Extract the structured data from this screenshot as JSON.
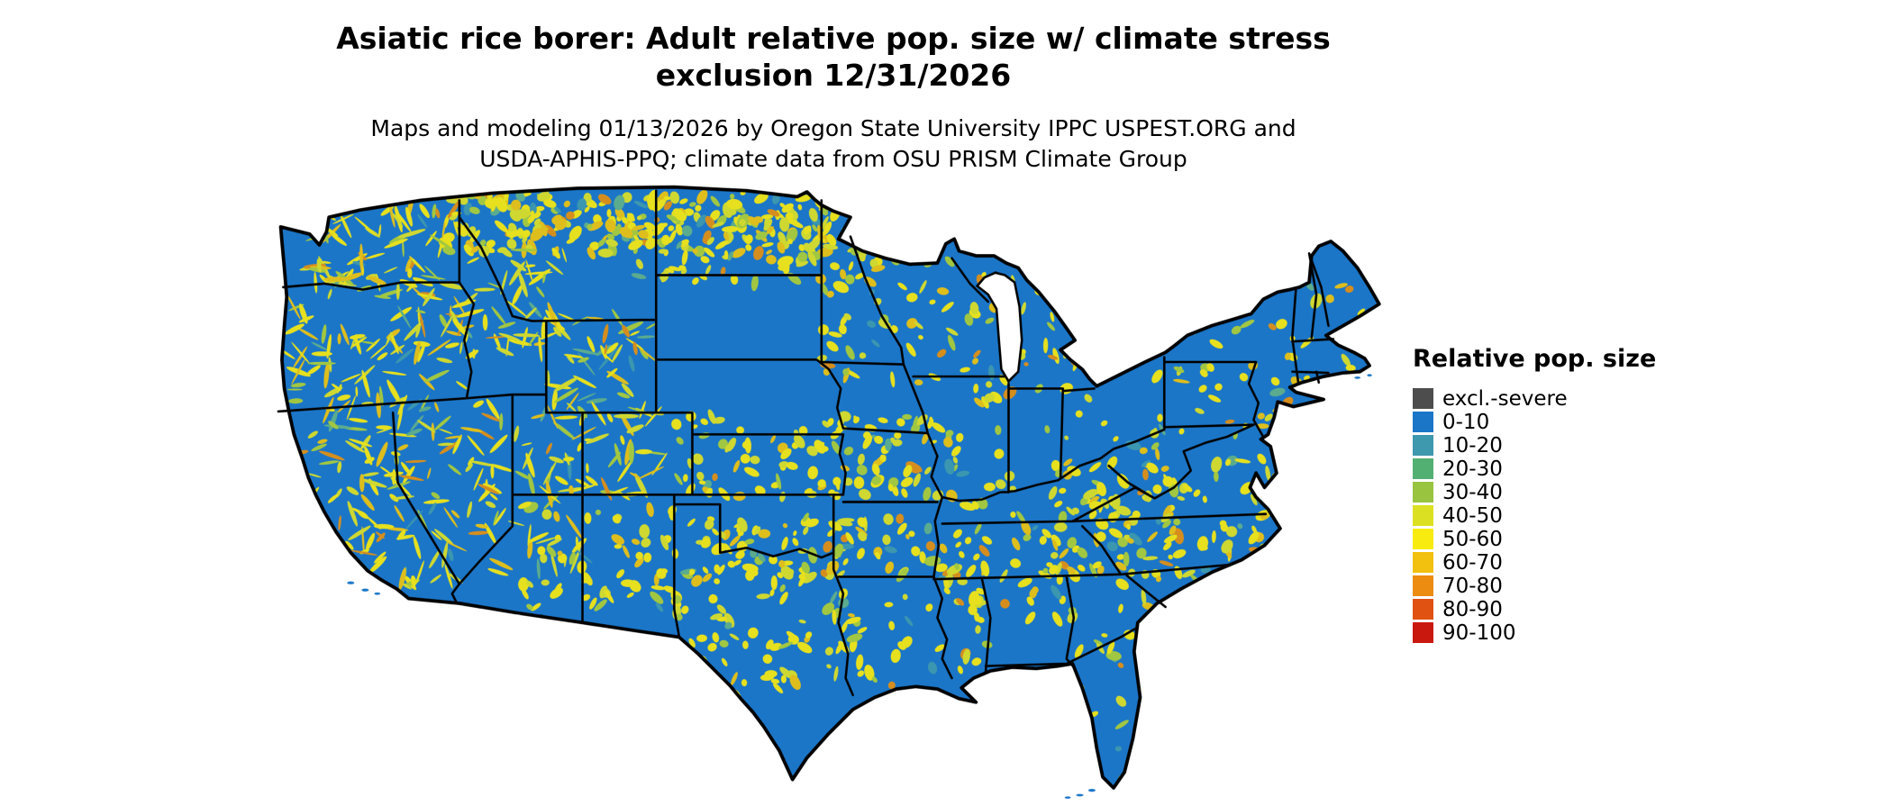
{
  "title": {
    "line1": "Asiatic rice borer: Adult relative pop. size w/ climate stress",
    "line2": "exclusion 12/31/2026"
  },
  "subtitle": {
    "line1": "Maps and modeling 01/13/2026 by Oregon State University IPPC USPEST.ORG and",
    "line2": "USDA-APHIS-PPQ; climate data from OSU PRISM Climate Group"
  },
  "legend": {
    "title": "Relative pop. size",
    "items": [
      {
        "label": "excl.-severe",
        "color": "#4D4D4D"
      },
      {
        "label": "0-10",
        "color": "#1B76C8"
      },
      {
        "label": "10-20",
        "color": "#3E98AE"
      },
      {
        "label": "20-30",
        "color": "#53B073"
      },
      {
        "label": "30-40",
        "color": "#98C43F"
      },
      {
        "label": "40-50",
        "color": "#DCE022"
      },
      {
        "label": "50-60",
        "color": "#F8EB10"
      },
      {
        "label": "60-70",
        "color": "#F2C00E"
      },
      {
        "label": "70-80",
        "color": "#EC8C10"
      },
      {
        "label": "80-90",
        "color": "#E05212"
      },
      {
        "label": "90-100",
        "color": "#C9180E"
      }
    ]
  },
  "map": {
    "base_color": "#1B76C8",
    "border_color": "#000000",
    "water_color": "#FFFFFF",
    "patch_palette": [
      {
        "color": "#F2E616",
        "weight": 0.42
      },
      {
        "color": "#D8DE2A",
        "weight": 0.2
      },
      {
        "color": "#A9CC3B",
        "weight": 0.12
      },
      {
        "color": "#E9C215",
        "weight": 0.14
      },
      {
        "color": "#E09016",
        "weight": 0.06
      },
      {
        "color": "#5FAE8C",
        "weight": 0.03
      },
      {
        "color": "#3E98AE",
        "weight": 0.03
      }
    ]
  }
}
